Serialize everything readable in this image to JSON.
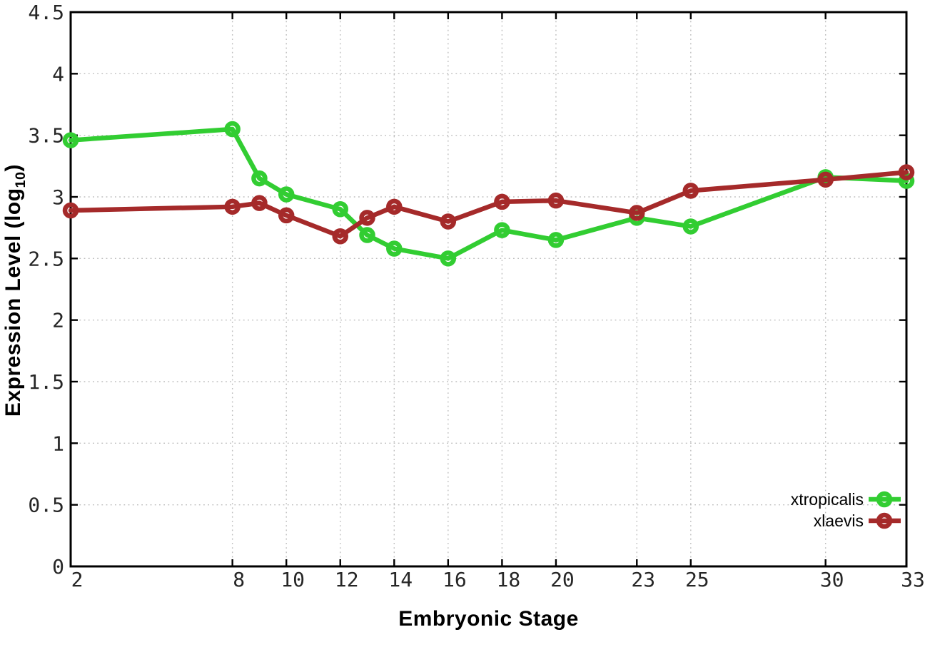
{
  "chart_data": {
    "type": "line",
    "x": [
      2,
      8,
      9,
      10,
      12,
      13,
      14,
      16,
      18,
      20,
      23,
      25,
      30,
      33
    ],
    "series": [
      {
        "name": "xtropicalis",
        "color": "#32cd32",
        "values": [
          3.46,
          3.55,
          3.15,
          3.02,
          2.9,
          2.69,
          2.58,
          2.5,
          2.73,
          2.65,
          2.83,
          2.76,
          3.16,
          3.13
        ]
      },
      {
        "name": "xlaevis",
        "color": "#a52a2a",
        "values": [
          2.89,
          2.92,
          2.95,
          2.85,
          2.68,
          2.83,
          2.92,
          2.8,
          2.96,
          2.97,
          2.87,
          3.05,
          3.14,
          3.2
        ]
      }
    ],
    "title": "",
    "xlabel": "Embryonic Stage",
    "ylabel": "Expression Level (log10)",
    "xlim": [
      2,
      33
    ],
    "ylim": [
      0,
      4.5
    ],
    "xticks": [
      2,
      8,
      10,
      12,
      14,
      16,
      18,
      20,
      23,
      25,
      30,
      33
    ],
    "ytick_values": [
      0,
      0.5,
      1,
      1.5,
      2,
      2.5,
      3,
      3.5,
      4,
      4.5
    ],
    "ytick_labels": [
      "0",
      "0.5",
      "1",
      "1.5",
      "2",
      "2.5",
      "3",
      "3.5",
      "4",
      "4.5"
    ],
    "grid": true,
    "grid_style": "dotted",
    "legend_position": "inside-bottom-right",
    "legend": [
      "xtropicalis",
      "xlaevis"
    ],
    "marker": "open-circle"
  },
  "labels": {
    "xlabel": "Embryonic Stage",
    "ylabel_prefix": "Expression Level (log",
    "ylabel_sub": "10",
    "ylabel_suffix": ")"
  },
  "style": {
    "background": "#ffffff",
    "border_color": "#000000",
    "grid_color": "#bdbdbd",
    "tick_color": "#000000",
    "tick_label_color": "#262626",
    "axis_title_color": "#000000",
    "legend_text_color": "#000000"
  }
}
